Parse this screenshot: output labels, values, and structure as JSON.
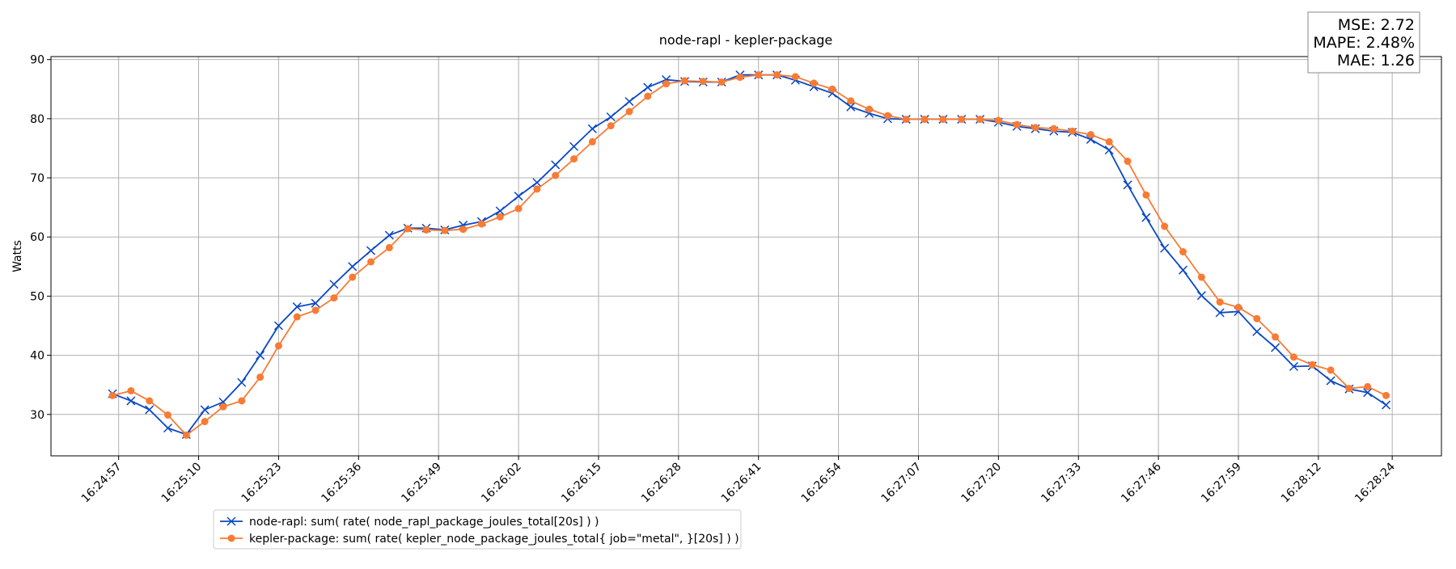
{
  "chart_data": {
    "type": "line",
    "title": "node-rapl - kepler-package",
    "y_label": "Watts",
    "annotations": [
      "MSE: 2.72",
      "MAPE: 2.48%",
      "MAE: 1.26"
    ],
    "x": [
      "16:24:56",
      "16:24:59",
      "16:25:02",
      "16:25:05",
      "16:25:08",
      "16:25:11",
      "16:25:14",
      "16:25:17",
      "16:25:20",
      "16:25:23",
      "16:25:26",
      "16:25:29",
      "16:25:32",
      "16:25:35",
      "16:25:38",
      "16:25:41",
      "16:25:44",
      "16:25:47",
      "16:25:50",
      "16:25:53",
      "16:25:56",
      "16:25:59",
      "16:26:02",
      "16:26:05",
      "16:26:08",
      "16:26:11",
      "16:26:14",
      "16:26:17",
      "16:26:20",
      "16:26:23",
      "16:26:26",
      "16:26:29",
      "16:26:32",
      "16:26:35",
      "16:26:38",
      "16:26:41",
      "16:26:44",
      "16:26:47",
      "16:26:50",
      "16:26:53",
      "16:26:56",
      "16:26:59",
      "16:27:02",
      "16:27:05",
      "16:27:08",
      "16:27:11",
      "16:27:14",
      "16:27:17",
      "16:27:20",
      "16:27:23",
      "16:27:26",
      "16:27:29",
      "16:27:32",
      "16:27:35",
      "16:27:38",
      "16:27:41",
      "16:27:44",
      "16:27:47",
      "16:27:50",
      "16:27:53",
      "16:27:56",
      "16:27:59",
      "16:28:02",
      "16:28:05",
      "16:28:08",
      "16:28:11",
      "16:28:14",
      "16:28:17",
      "16:28:20",
      "16:28:23"
    ],
    "series": [
      {
        "name": "node-rapl: sum( rate( node_rapl_package_joules_total[20s] ) )",
        "color": "#0a48c4",
        "marker": "x",
        "values": [
          33.5,
          32.3,
          30.8,
          27.7,
          26.6,
          30.8,
          32.1,
          35.4,
          40,
          45,
          48.2,
          48.8,
          52,
          55,
          57.7,
          60.3,
          61.5,
          61.5,
          61.2,
          62,
          62.6,
          64.4,
          66.9,
          69.2,
          72.2,
          75.3,
          78.3,
          80.3,
          82.9,
          85.3,
          86.6,
          86.3,
          86.2,
          86.2,
          87.4,
          87.4,
          87.4,
          86.5,
          85.4,
          84.3,
          82,
          80.9,
          80,
          79.9,
          79.9,
          79.9,
          79.9,
          79.9,
          79.4,
          78.7,
          78.3,
          77.9,
          77.7,
          76.5,
          74.7,
          68.8,
          63.3,
          58.1,
          54.4,
          50.1,
          47.2,
          47.4,
          44,
          41.3,
          38.1,
          38.2,
          35.7,
          34.3,
          33.7,
          31.6
        ]
      },
      {
        "name": "kepler-package: sum( rate( kepler_node_package_joules_total{ job=\"metal\", }[20s] ) )",
        "color": "#f77b35",
        "marker": "o",
        "values": [
          33.2,
          34,
          32.3,
          29.9,
          26.5,
          28.8,
          31.3,
          32.3,
          36.3,
          41.6,
          46.5,
          47.6,
          49.7,
          53.2,
          55.8,
          58.2,
          61.4,
          61.2,
          61.1,
          61.3,
          62.2,
          63.4,
          64.8,
          68.1,
          70.4,
          73.2,
          76.1,
          78.8,
          81.2,
          83.8,
          85.9,
          86.4,
          86.3,
          86.2,
          87,
          87.4,
          87.4,
          87.1,
          86,
          85,
          83,
          81.6,
          80.5,
          79.9,
          79.9,
          79.9,
          79.9,
          79.9,
          79.7,
          79,
          78.5,
          78.3,
          77.9,
          77.3,
          76.1,
          72.8,
          67.1,
          61.8,
          57.5,
          53.2,
          49,
          48.1,
          46.2,
          43.1,
          39.7,
          38.4,
          37.5,
          34.4,
          34.7,
          33.2
        ]
      }
    ],
    "xlim": [
      "16:24:46",
      "16:28:32"
    ],
    "xticks": [
      "16:24:57",
      "16:25:10",
      "16:25:23",
      "16:25:36",
      "16:25:49",
      "16:26:02",
      "16:26:15",
      "16:26:28",
      "16:26:41",
      "16:26:54",
      "16:27:07",
      "16:27:20",
      "16:27:33",
      "16:27:46",
      "16:27:59",
      "16:28:12",
      "16:28:24"
    ],
    "ylim": [
      23,
      90.5
    ],
    "yticks": [
      30,
      40,
      50,
      60,
      70,
      80,
      90
    ],
    "grid": true,
    "legend": "lower center"
  }
}
